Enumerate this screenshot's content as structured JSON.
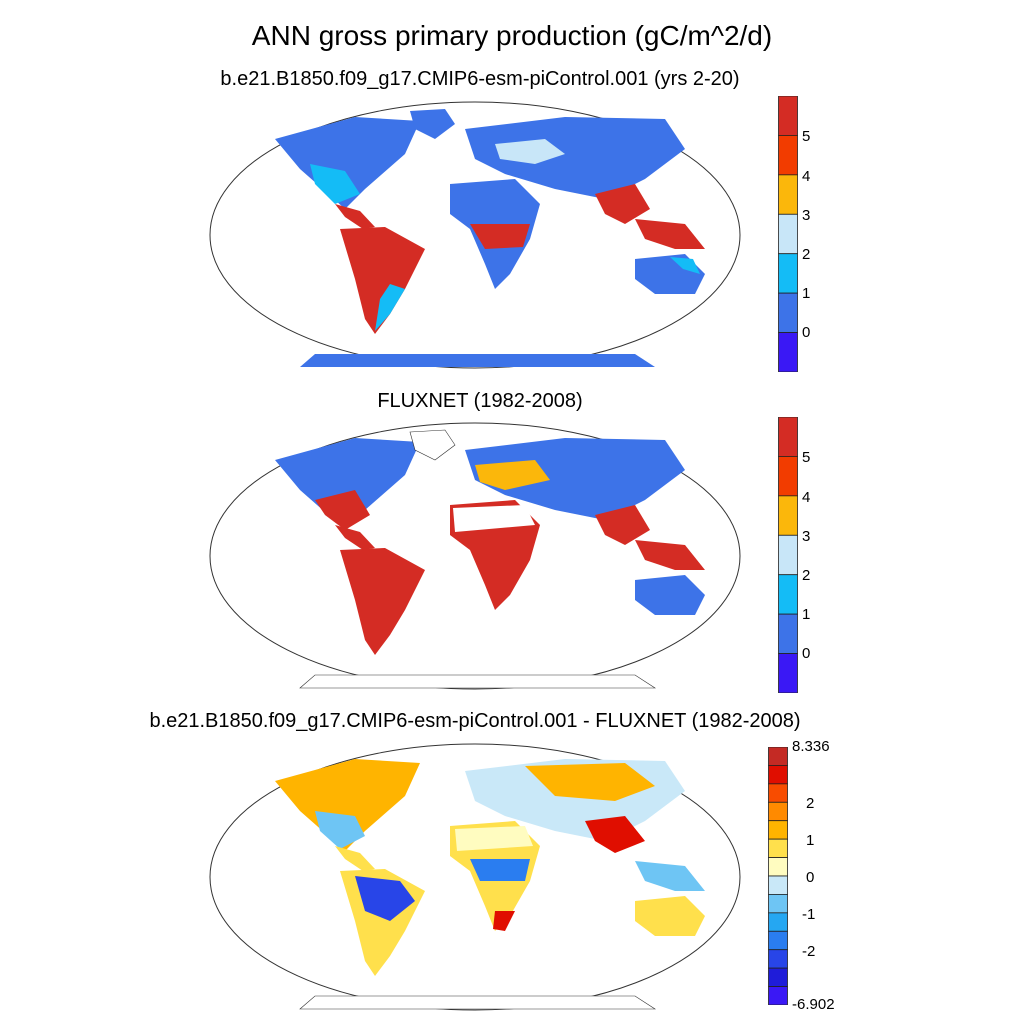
{
  "title": "ANN gross primary production (gC/m^2/d)",
  "panels": [
    {
      "id": "model",
      "title": "b.e21.B1850.f09_g17.CMIP6-esm-piControl.001 (yrs 2-20)",
      "colorbar": {
        "labels": [
          "5",
          "4",
          "3",
          "2",
          "1",
          "0"
        ],
        "colors": [
          "#d42c24",
          "#f23c00",
          "#fbb70b",
          "#c8e6f8",
          "#14bcf6",
          "#3d73e8",
          "#3a18f5"
        ]
      }
    },
    {
      "id": "obs",
      "title": "FLUXNET (1982-2008)",
      "colorbar": {
        "labels": [
          "5",
          "4",
          "3",
          "2",
          "1",
          "0"
        ],
        "colors": [
          "#d42c24",
          "#f23c00",
          "#fbb70b",
          "#c8e6f8",
          "#14bcf6",
          "#3d73e8",
          "#3a18f5"
        ]
      }
    },
    {
      "id": "diff",
      "title": "b.e21.B1850.f09_g17.CMIP6-esm-piControl.001 - FLUXNET (1982-2008)",
      "colorbar": {
        "max_label": "8.336",
        "min_label": "-6.902",
        "labels": [
          "2",
          "1",
          "0",
          "-1",
          "-2"
        ],
        "colors": [
          "#c42a24",
          "#e00e00",
          "#f84c00",
          "#ff8a00",
          "#ffb400",
          "#ffe04c",
          "#fffcc0",
          "#c9e8f8",
          "#6ec5f4",
          "#25a7f2",
          "#2a7df0",
          "#2845e8",
          "#1f1cd9",
          "#3a18f5"
        ]
      }
    }
  ]
}
